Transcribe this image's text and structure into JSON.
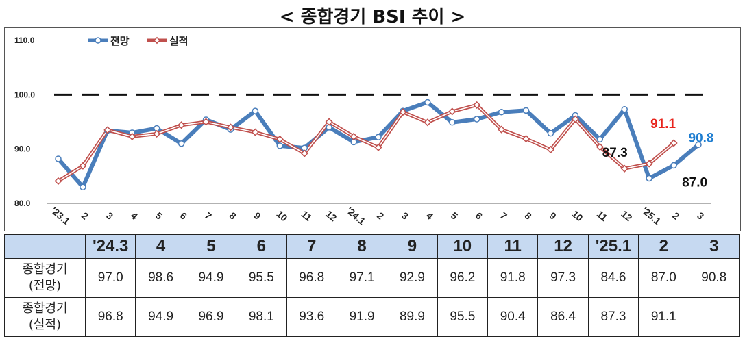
{
  "title": "< 종합경기 BSI 추이 >",
  "chart_data": {
    "type": "line",
    "title": "< 종합경기 BSI 추이 >",
    "x": [
      "'23.1",
      "2",
      "3",
      "4",
      "5",
      "6",
      "7",
      "8",
      "9",
      "10",
      "11",
      "12",
      "'24.1",
      "2",
      "3",
      "4",
      "5",
      "6",
      "7",
      "8",
      "9",
      "10",
      "11",
      "12",
      "'25.1",
      "2",
      "3"
    ],
    "ylim": [
      80,
      110
    ],
    "yticks": [
      "110.0",
      "100.0",
      "90.0",
      "80.0"
    ],
    "reference_line": 100,
    "legend_position": "top-left",
    "series": [
      {
        "name": "전망",
        "color": "#4a7ebb",
        "values": [
          88.2,
          83.0,
          93.4,
          93.0,
          93.8,
          91.0,
          95.4,
          93.6,
          97.0,
          90.6,
          90.2,
          94.0,
          91.3,
          92.2,
          97.0,
          98.6,
          94.9,
          95.5,
          96.8,
          97.1,
          92.9,
          96.2,
          91.8,
          97.3,
          84.6,
          87.0,
          90.8
        ]
      },
      {
        "name": "실적",
        "color": "#c0504d",
        "values": [
          84.1,
          86.9,
          93.5,
          92.3,
          92.8,
          94.4,
          95.0,
          94.0,
          93.1,
          91.8,
          89.2,
          95.0,
          92.3,
          90.3,
          96.8,
          94.9,
          96.9,
          98.1,
          93.6,
          91.9,
          89.9,
          95.5,
          90.4,
          86.4,
          87.3,
          91.1,
          null
        ]
      }
    ],
    "annotations": [
      {
        "text": "91.1",
        "color": "#e8241c"
      },
      {
        "text": "90.8",
        "color": "#1f7ed1"
      },
      {
        "text": "87.3",
        "color": "#111111"
      },
      {
        "text": "87.0",
        "color": "#111111"
      }
    ]
  },
  "table": {
    "headers": [
      "'24.3",
      "4",
      "5",
      "6",
      "7",
      "8",
      "9",
      "10",
      "11",
      "12",
      "'25.1",
      "2",
      "3"
    ],
    "rows": [
      {
        "label_line1": "종합경기",
        "label_line2": "(전망)",
        "values": [
          "97.0",
          "98.6",
          "94.9",
          "95.5",
          "96.8",
          "97.1",
          "92.9",
          "96.2",
          "91.8",
          "97.3",
          "84.6",
          "87.0",
          "90.8"
        ]
      },
      {
        "label_line1": "종합경기",
        "label_line2": "(실적)",
        "values": [
          "96.8",
          "94.9",
          "96.9",
          "98.1",
          "93.6",
          "91.9",
          "89.9",
          "95.5",
          "90.4",
          "86.4",
          "87.3",
          "91.1",
          ""
        ]
      }
    ]
  }
}
